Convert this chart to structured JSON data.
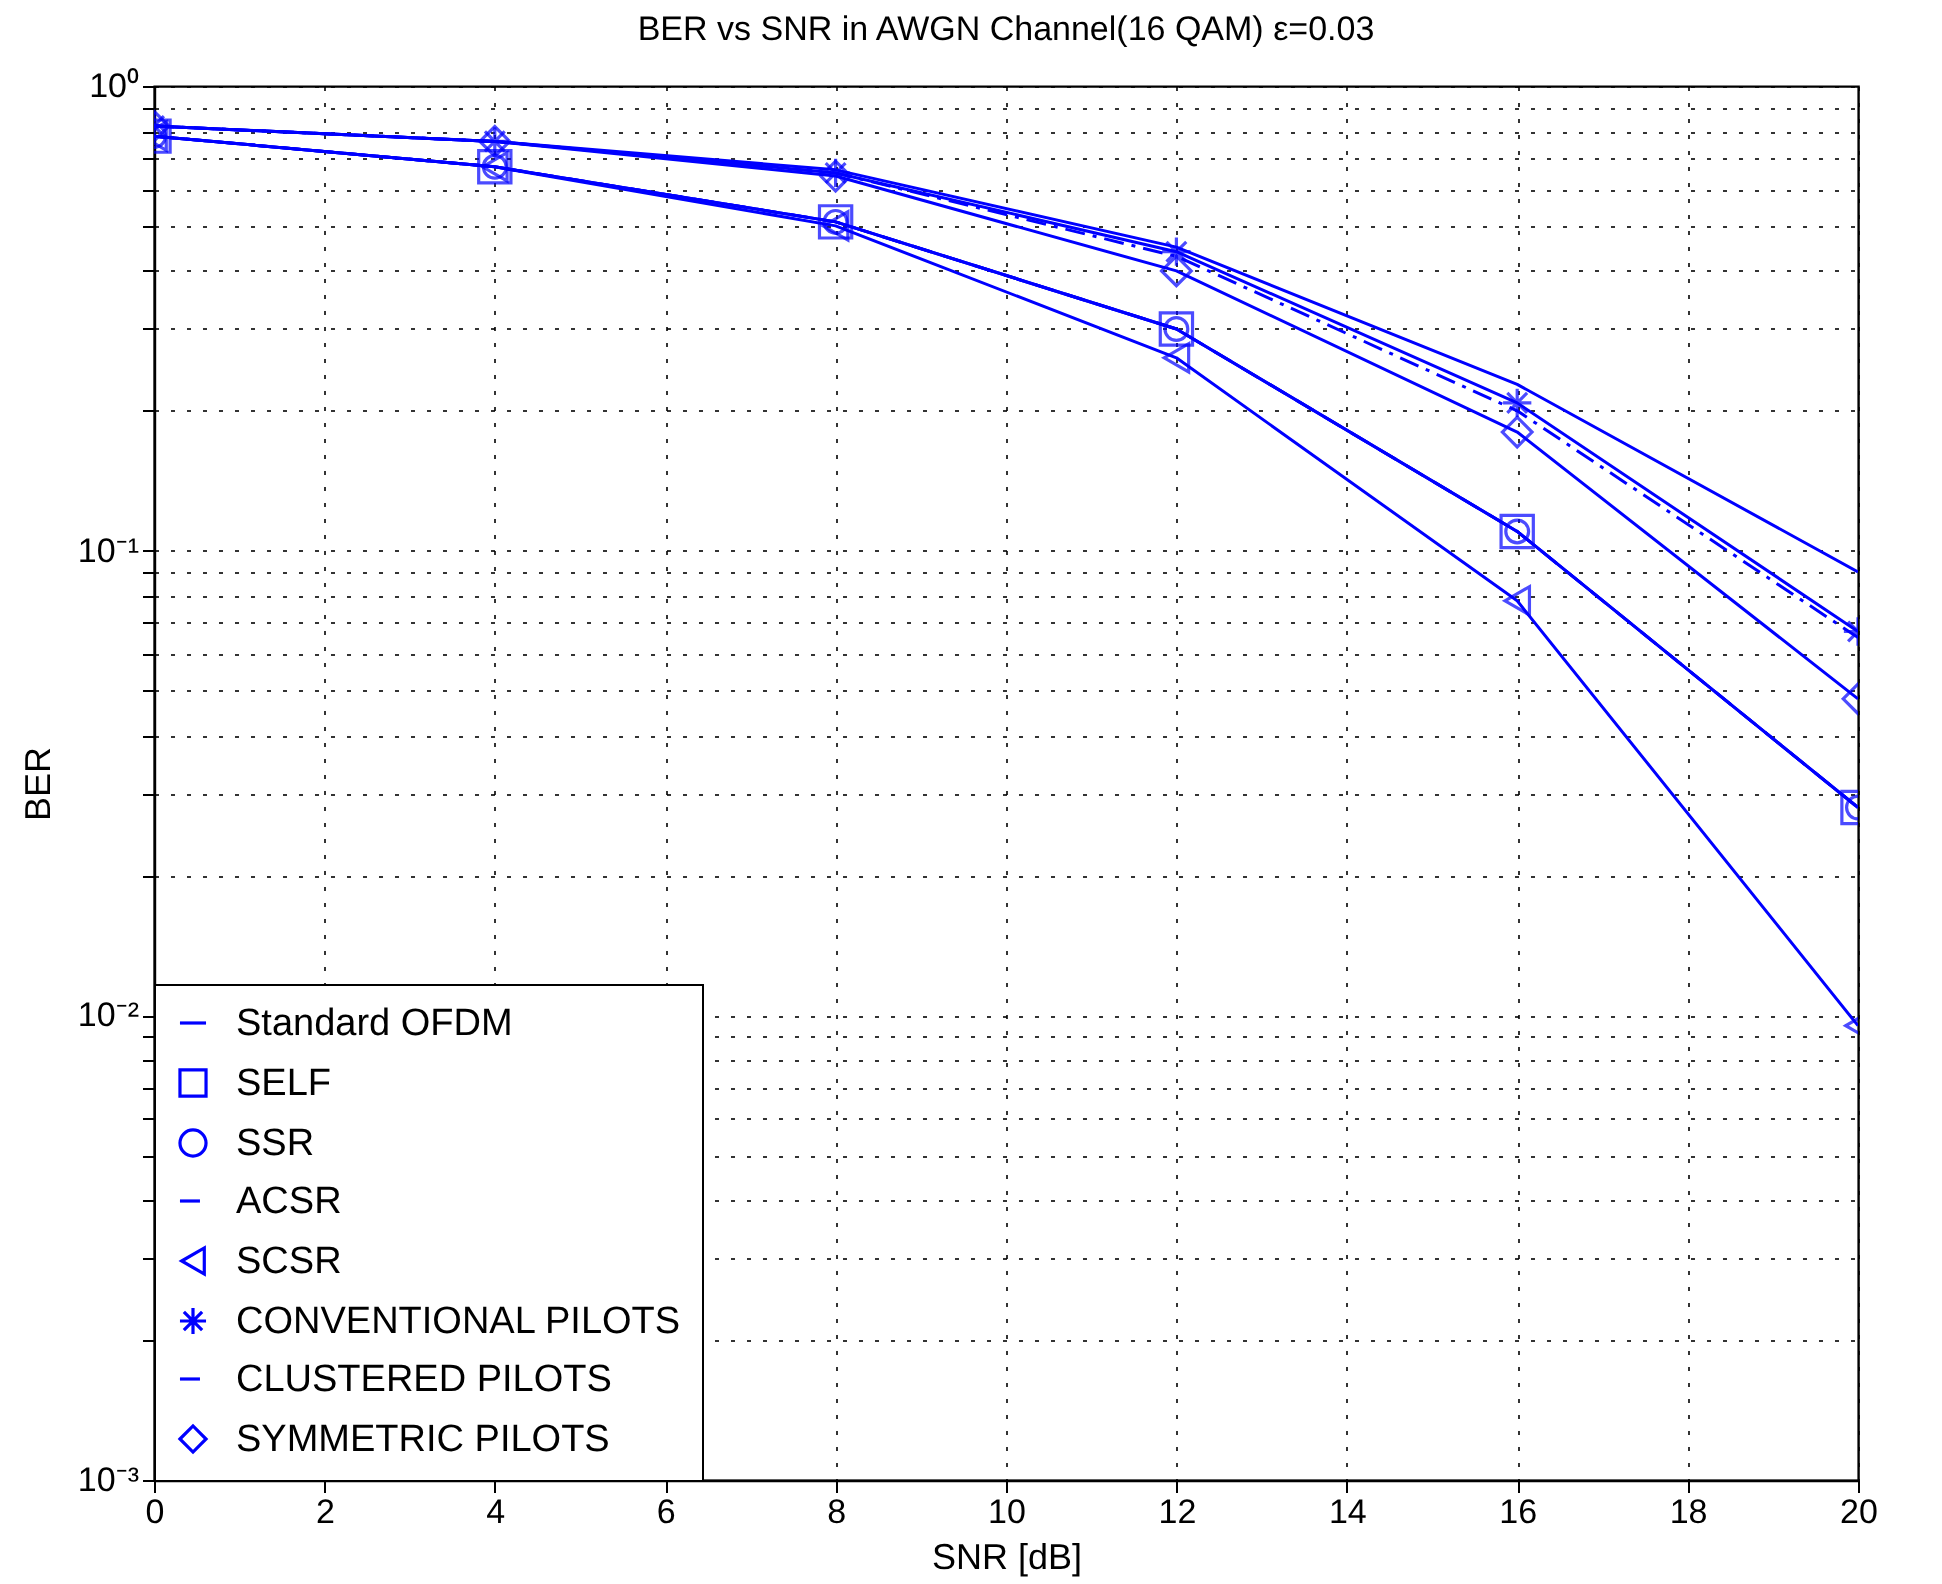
{
  "chart_data": {
    "type": "line",
    "title": "BER vs SNR in AWGN Channel(16 QAM) ε=0.03",
    "xlabel": "SNR [dB]",
    "ylabel": "BER",
    "x": [
      0,
      4,
      8,
      12,
      16,
      20
    ],
    "series": [
      {
        "name": "Standard OFDM",
        "color": "#0000ff",
        "marker": "none",
        "line_style": "solid",
        "values": [
          0.82,
          0.76,
          0.66,
          0.45,
          0.228,
          0.09
        ]
      },
      {
        "name": "SELF",
        "color": "#0000ff",
        "marker": "square",
        "line_style": "solid",
        "values": [
          0.78,
          0.67,
          0.51,
          0.3,
          0.11,
          0.028
        ]
      },
      {
        "name": "SSR",
        "color": "#0000ff",
        "marker": "circle",
        "line_style": "solid",
        "values": [
          0.78,
          0.67,
          0.51,
          0.3,
          0.11,
          0.028
        ]
      },
      {
        "name": "ACSR",
        "color": "#0000ff",
        "marker": "none",
        "line_style": "dashed",
        "values": [
          0.78,
          0.67,
          0.51,
          0.3,
          0.11,
          0.028
        ]
      },
      {
        "name": "SCSR",
        "color": "#0000ff",
        "marker": "triangle",
        "line_style": "solid",
        "values": [
          0.78,
          0.67,
          0.5,
          0.26,
          0.078,
          0.0095
        ]
      },
      {
        "name": "CONVENTIONAL PILOTS",
        "color": "#0000ff",
        "marker": "cross",
        "line_style": "solid",
        "values": [
          0.82,
          0.76,
          0.65,
          0.44,
          0.208,
          0.067
        ]
      },
      {
        "name": "CLUSTERED PILOTS",
        "color": "#0000ff",
        "marker": "none",
        "line_style": "dashdot",
        "values": [
          0.82,
          0.76,
          0.65,
          0.43,
          0.2,
          0.065
        ]
      },
      {
        "name": "SYMMETRIC PILOTS",
        "color": "#0000ff",
        "marker": "diamond",
        "line_style": "solid",
        "values": [
          0.82,
          0.76,
          0.64,
          0.4,
          0.18,
          0.048
        ]
      }
    ],
    "log": "y",
    "grid": true,
    "legend": "bottom left",
    "xlim": [
      0,
      20
    ],
    "xticks": [
      0,
      2,
      4,
      6,
      8,
      10,
      12,
      14,
      16,
      18,
      20
    ],
    "ylim": [
      0.001,
      1
    ],
    "yticks": [
      {
        "value": 0.001,
        "label": "10⁻³"
      },
      {
        "value": 0.002,
        "label": null
      },
      {
        "value": 0.003,
        "label": null
      },
      {
        "value": 0.004,
        "label": null
      },
      {
        "value": 0.005,
        "label": null
      },
      {
        "value": 0.006,
        "label": null
      },
      {
        "value": 0.007,
        "label": null
      },
      {
        "value": 0.008,
        "label": null
      },
      {
        "value": 0.009,
        "label": null
      },
      {
        "value": 0.01,
        "label": "10⁻²"
      },
      {
        "value": 0.02,
        "label": null
      },
      {
        "value": 0.03,
        "label": null
      },
      {
        "value": 0.04,
        "label": null
      },
      {
        "value": 0.05,
        "label": null
      },
      {
        "value": 0.06,
        "label": null
      },
      {
        "value": 0.07,
        "label": null
      },
      {
        "value": 0.08,
        "label": null
      },
      {
        "value": 0.09,
        "label": null
      },
      {
        "value": 0.1,
        "label": "10⁻¹"
      },
      {
        "value": 0.2,
        "label": null
      },
      {
        "value": 0.3,
        "label": null
      },
      {
        "value": 0.4,
        "label": null
      },
      {
        "value": 0.5,
        "label": null
      },
      {
        "value": 0.6,
        "label": null
      },
      {
        "value": 0.7,
        "label": null
      },
      {
        "value": 0.8,
        "label": null
      },
      {
        "value": 0.9,
        "label": null
      },
      {
        "value": 1,
        "label": "10⁰"
      }
    ]
  }
}
